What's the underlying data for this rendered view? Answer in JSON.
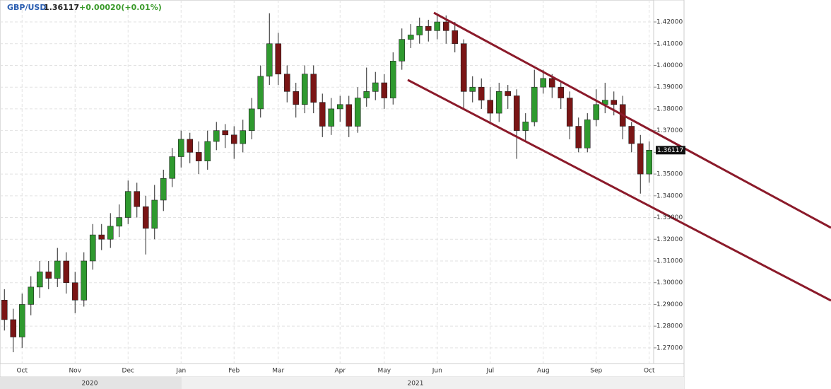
{
  "header": {
    "symbol": "GBP/USD",
    "price": "1.36117",
    "change": "+0.00020(+0.01%)"
  },
  "chart_data": {
    "type": "candlestick",
    "categories": [
      null,
      null,
      "Oct",
      null,
      null,
      null,
      null,
      null,
      "Nov",
      null,
      null,
      null,
      null,
      null,
      "Dec",
      null,
      null,
      null,
      null,
      null,
      "Jan",
      null,
      null,
      null,
      null,
      null,
      "Feb",
      null,
      null,
      null,
      null,
      "Mar",
      null,
      null,
      null,
      null,
      null,
      null,
      "Apr",
      null,
      null,
      null,
      null,
      "May",
      null,
      null,
      null,
      null,
      null,
      "Jun",
      null,
      null,
      null,
      null,
      null,
      "Jul",
      null,
      null,
      null,
      null,
      null,
      "Aug",
      null,
      null,
      null,
      null,
      null,
      "Sep",
      null,
      null,
      null,
      null,
      null,
      "Oct"
    ],
    "year_labels": [
      "2020",
      "2021"
    ],
    "open": [
      1.292,
      1.283,
      1.275,
      1.29,
      1.298,
      1.305,
      1.302,
      1.31,
      1.3,
      1.292,
      1.31,
      1.322,
      1.32,
      1.326,
      1.33,
      1.342,
      1.335,
      1.325,
      1.338,
      1.348,
      1.358,
      1.366,
      1.36,
      1.356,
      1.365,
      1.37,
      1.368,
      1.364,
      1.37,
      1.38,
      1.395,
      1.41,
      1.396,
      1.388,
      1.382,
      1.396,
      1.383,
      1.372,
      1.38,
      1.382,
      1.372,
      1.385,
      1.388,
      1.392,
      1.385,
      1.402,
      1.412,
      1.414,
      1.418,
      1.416,
      1.42,
      1.416,
      1.41,
      1.388,
      1.39,
      1.384,
      1.378,
      1.388,
      1.386,
      1.37,
      1.374,
      1.39,
      1.394,
      1.39,
      1.385,
      1.372,
      1.362,
      1.375,
      1.382,
      1.384,
      1.382,
      1.372,
      1.364,
      1.35
    ],
    "high": [
      1.297,
      1.288,
      1.295,
      1.303,
      1.31,
      1.31,
      1.316,
      1.314,
      1.305,
      1.314,
      1.327,
      1.327,
      1.332,
      1.336,
      1.347,
      1.346,
      1.34,
      1.345,
      1.352,
      1.362,
      1.37,
      1.369,
      1.365,
      1.37,
      1.374,
      1.373,
      1.372,
      1.375,
      1.385,
      1.4,
      1.424,
      1.415,
      1.4,
      1.392,
      1.4,
      1.4,
      1.387,
      1.385,
      1.386,
      1.386,
      1.39,
      1.399,
      1.397,
      1.396,
      1.406,
      1.417,
      1.419,
      1.422,
      1.421,
      1.424,
      1.423,
      1.42,
      1.412,
      1.395,
      1.394,
      1.39,
      1.392,
      1.391,
      1.389,
      1.378,
      1.398,
      1.398,
      1.396,
      1.393,
      1.388,
      1.376,
      1.378,
      1.389,
      1.392,
      1.388,
      1.386,
      1.374,
      1.368,
      1.365
    ],
    "low": [
      1.278,
      1.268,
      1.27,
      1.285,
      1.293,
      1.297,
      1.298,
      1.295,
      1.286,
      1.289,
      1.306,
      1.315,
      1.316,
      1.321,
      1.327,
      1.33,
      1.313,
      1.32,
      1.333,
      1.344,
      1.353,
      1.355,
      1.35,
      1.352,
      1.361,
      1.362,
      1.357,
      1.36,
      1.366,
      1.376,
      1.391,
      1.391,
      1.383,
      1.376,
      1.378,
      1.378,
      1.367,
      1.368,
      1.374,
      1.367,
      1.369,
      1.381,
      1.384,
      1.38,
      1.382,
      1.398,
      1.408,
      1.41,
      1.411,
      1.412,
      1.41,
      1.406,
      1.38,
      1.383,
      1.38,
      1.374,
      1.374,
      1.38,
      1.357,
      1.365,
      1.372,
      1.387,
      1.385,
      1.38,
      1.366,
      1.36,
      1.36,
      1.372,
      1.378,
      1.377,
      1.366,
      1.36,
      1.341,
      1.346
    ],
    "close": [
      1.283,
      1.275,
      1.29,
      1.298,
      1.305,
      1.302,
      1.31,
      1.3,
      1.292,
      1.31,
      1.322,
      1.32,
      1.326,
      1.33,
      1.342,
      1.335,
      1.325,
      1.338,
      1.348,
      1.358,
      1.366,
      1.36,
      1.356,
      1.365,
      1.37,
      1.368,
      1.364,
      1.37,
      1.38,
      1.395,
      1.41,
      1.396,
      1.388,
      1.382,
      1.396,
      1.383,
      1.372,
      1.38,
      1.382,
      1.372,
      1.385,
      1.388,
      1.392,
      1.385,
      1.402,
      1.412,
      1.414,
      1.418,
      1.416,
      1.42,
      1.416,
      1.41,
      1.388,
      1.39,
      1.384,
      1.378,
      1.388,
      1.386,
      1.37,
      1.374,
      1.39,
      1.394,
      1.39,
      1.385,
      1.372,
      1.362,
      1.375,
      1.382,
      1.384,
      1.382,
      1.372,
      1.364,
      1.35,
      1.361
    ],
    "up_color": "#2f9a2f",
    "down_color": "#7a1515",
    "ylim": [
      1.2628,
      1.4301
    ],
    "yticks": [
      {
        "value": 1.27,
        "label": "1.27000"
      },
      {
        "value": 1.28,
        "label": "1.28000"
      },
      {
        "value": 1.29,
        "label": "1.29000"
      },
      {
        "value": 1.3,
        "label": "1.30000"
      },
      {
        "value": 1.31,
        "label": "1.31000"
      },
      {
        "value": 1.32,
        "label": "1.32000"
      },
      {
        "value": 1.33,
        "label": "1.33000"
      },
      {
        "value": 1.34,
        "label": "1.34000"
      },
      {
        "value": 1.35,
        "label": "1.35000"
      },
      {
        "value": 1.36,
        "label": "1.36000"
      },
      {
        "value": 1.37,
        "label": "1.37000"
      },
      {
        "value": 1.38,
        "label": "1.38000"
      },
      {
        "value": 1.39,
        "label": "1.39000"
      },
      {
        "value": 1.4,
        "label": "1.40000"
      },
      {
        "value": 1.41,
        "label": "1.41000"
      },
      {
        "value": 1.42,
        "label": "1.42000"
      }
    ],
    "grid": true
  }
}
